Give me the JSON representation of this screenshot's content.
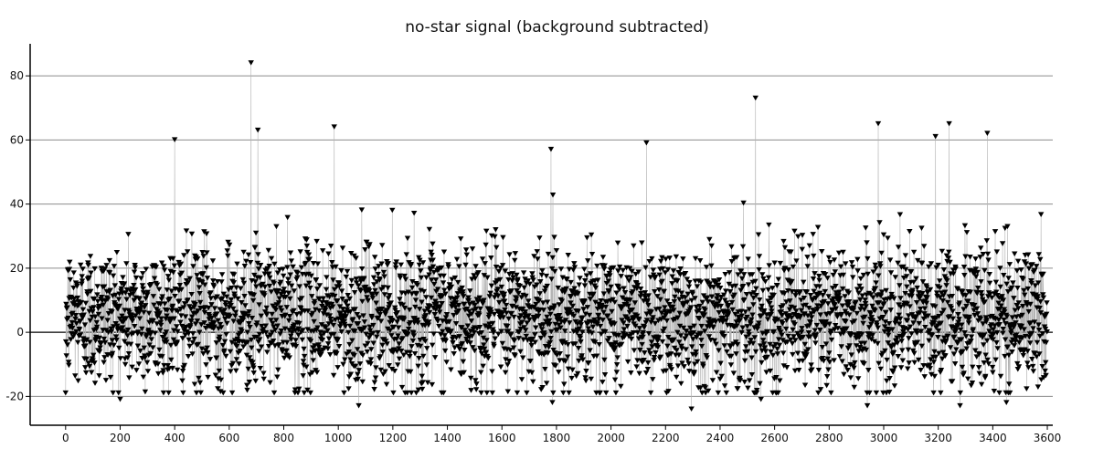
{
  "chart_data": {
    "type": "line",
    "title": "no-star signal (background subtracted)",
    "xlabel": "",
    "ylabel": "",
    "xlim": [
      -130,
      3620
    ],
    "ylim": [
      -29,
      90
    ],
    "xticks": [
      0,
      200,
      400,
      600,
      800,
      1000,
      1200,
      1400,
      1600,
      1800,
      2000,
      2200,
      2400,
      2600,
      2800,
      3000,
      3200,
      3400,
      3600
    ],
    "yticks": [
      -20,
      0,
      20,
      40,
      60,
      80
    ],
    "grid": "horizontal",
    "marker": "downward-triangle",
    "marker_color": "#000000",
    "stem_color": "#b4b4b4",
    "notable_points": [
      {
        "x": 680,
        "y": 84
      },
      {
        "x": 2530,
        "y": 73
      },
      {
        "x": 3240,
        "y": 65
      },
      {
        "x": 2980,
        "y": 65
      },
      {
        "x": 985,
        "y": 64
      },
      {
        "x": 705,
        "y": 63
      },
      {
        "x": 3380,
        "y": 62
      },
      {
        "x": 3190,
        "y": 61
      },
      {
        "x": 400,
        "y": 60
      },
      {
        "x": 2130,
        "y": 59
      },
      {
        "x": 1780,
        "y": 57
      },
      {
        "x": 1075,
        "y": -23
      },
      {
        "x": 2295,
        "y": -24
      },
      {
        "x": 3280,
        "y": -23
      },
      {
        "x": 2940,
        "y": -23
      },
      {
        "x": 1785,
        "y": -22
      },
      {
        "x": 3450,
        "y": -22
      },
      {
        "x": 200,
        "y": -21
      },
      {
        "x": 2550,
        "y": -21
      },
      {
        "x": 0,
        "y": -19
      }
    ],
    "series": [
      {
        "n": 3600,
        "x_start": 0,
        "x_step": 1,
        "mean": 5,
        "std": 11,
        "min": -24,
        "max": 84
      }
    ]
  }
}
